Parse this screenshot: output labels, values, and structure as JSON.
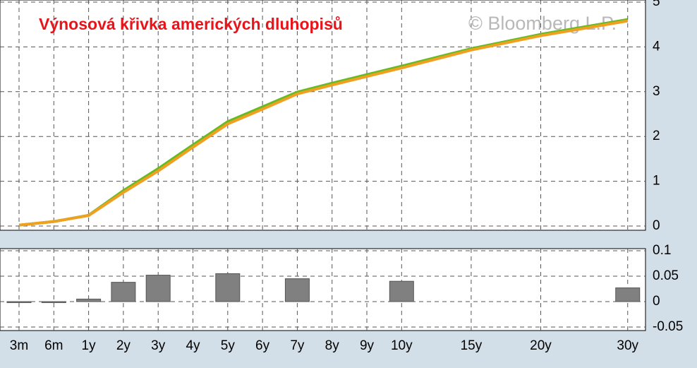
{
  "chart_data": [
    {
      "type": "line",
      "title": "Výnosová křivka amerických dluhopisů",
      "watermark": "© Bloomberg L.P.",
      "categories": [
        "3m",
        "6m",
        "1y",
        "2y",
        "3y",
        "4y",
        "5y",
        "6y",
        "7y",
        "8y",
        "9y",
        "10y",
        "15y",
        "20y",
        "30y"
      ],
      "series": [
        {
          "color": "#66bb22",
          "values": [
            0.02,
            0.1,
            0.24,
            0.79,
            1.28,
            1.81,
            2.33,
            2.66,
            2.99,
            3.19,
            3.38,
            3.57,
            3.96,
            4.28,
            4.61
          ]
        },
        {
          "color": "#f0a020",
          "values": [
            0.02,
            0.1,
            0.235,
            0.75,
            1.23,
            1.76,
            2.28,
            2.61,
            2.95,
            3.15,
            3.34,
            3.53,
            3.93,
            4.25,
            4.58
          ]
        }
      ],
      "ylim": [
        0,
        5
      ],
      "yticks": [
        0,
        1,
        2,
        3,
        4,
        5
      ],
      "grid": true
    },
    {
      "type": "bar",
      "categories": [
        "3m",
        "6m",
        "1y",
        "2y",
        "3y",
        "4y",
        "5y",
        "6y",
        "7y",
        "8y",
        "9y",
        "10y",
        "15y",
        "20y",
        "30y"
      ],
      "values": [
        -0.002,
        -0.002,
        0.005,
        0.038,
        0.052,
        null,
        0.055,
        null,
        0.045,
        null,
        null,
        0.04,
        null,
        null,
        0.027
      ],
      "color": "#808080",
      "ylim": [
        -0.05,
        0.1
      ],
      "yticks": [
        0.1,
        0.05,
        0,
        -0.05
      ],
      "grid": true
    }
  ]
}
